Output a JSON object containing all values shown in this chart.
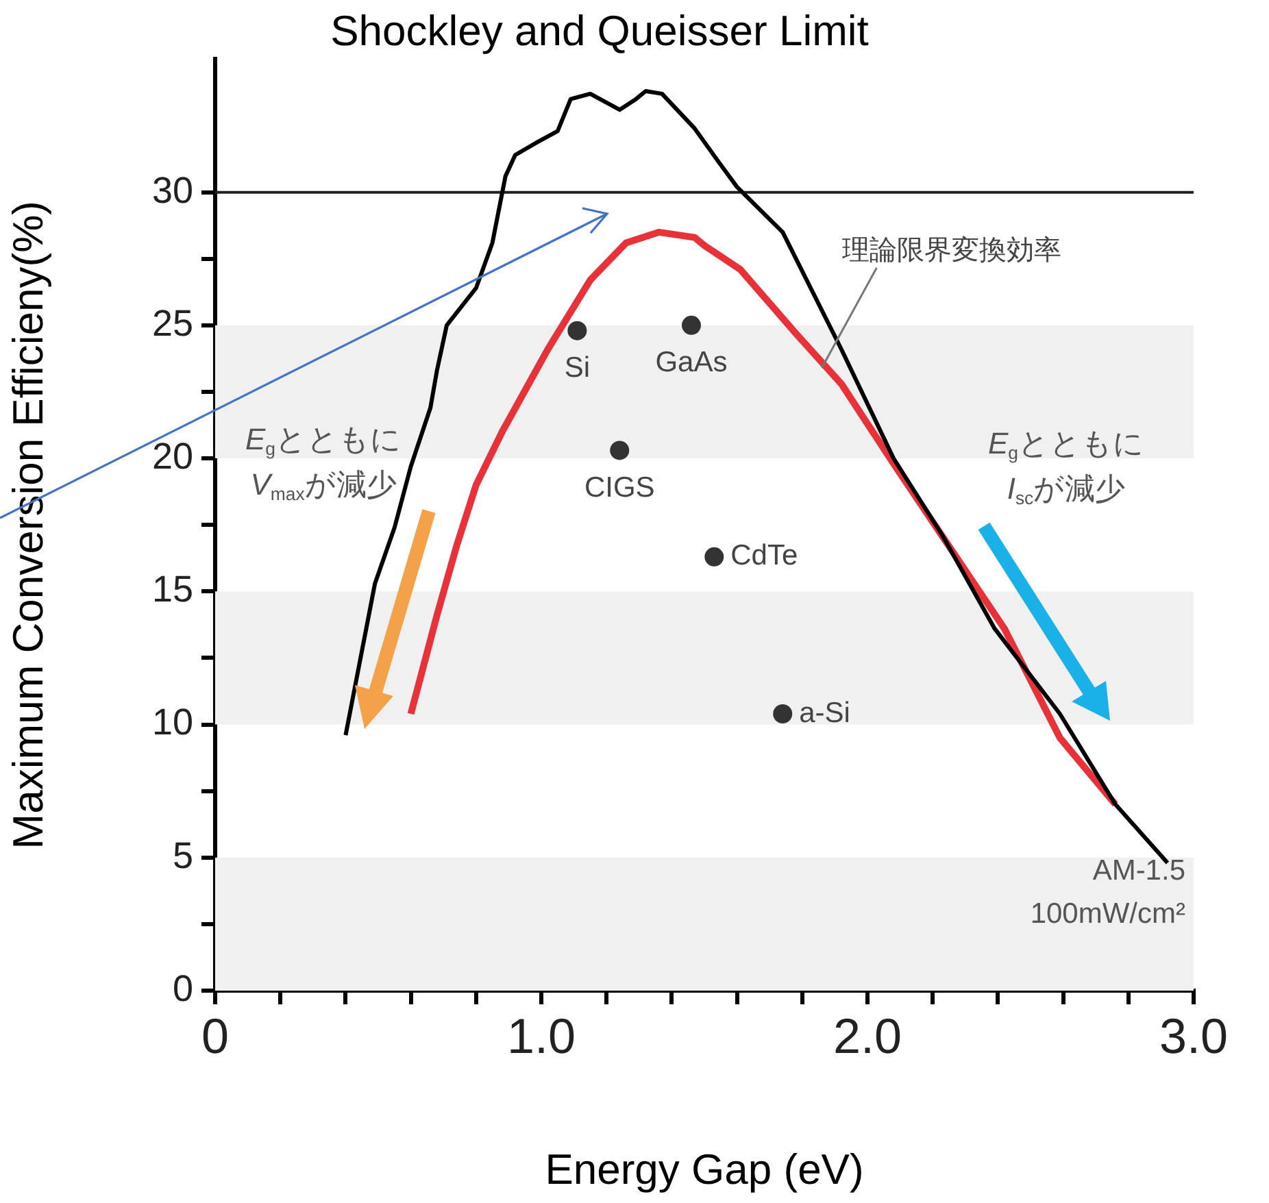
{
  "chart_data": {
    "type": "line",
    "title": "Shockley and Queisser Limit",
    "xlabel": "Energy Gap (eV)",
    "ylabel": "Maximum Conversion Efficieny(%)",
    "xlim": [
      0,
      3
    ],
    "xticks": [
      {
        "value": 0,
        "label": "0"
      },
      {
        "value": 0.2,
        "label": null
      },
      {
        "value": 0.4,
        "label": null
      },
      {
        "value": 0.6,
        "label": null
      },
      {
        "value": 0.8,
        "label": null
      },
      {
        "value": 1,
        "label": "1.0"
      },
      {
        "value": 1.2,
        "label": null
      },
      {
        "value": 1.4,
        "label": null
      },
      {
        "value": 1.6,
        "label": null
      },
      {
        "value": 1.8,
        "label": null
      },
      {
        "value": 2,
        "label": "2.0"
      },
      {
        "value": 2.2,
        "label": null
      },
      {
        "value": 2.4,
        "label": null
      },
      {
        "value": 2.6,
        "label": null
      },
      {
        "value": 2.8,
        "label": null
      },
      {
        "value": 3,
        "label": "3.0"
      }
    ],
    "ylim": [
      0,
      35
    ],
    "yticks": [
      0,
      {
        "value": 2.5,
        "label": null
      },
      5,
      {
        "value": 7.5,
        "label": null
      },
      10,
      {
        "value": 12.5,
        "label": null
      },
      15,
      {
        "value": 17.5,
        "label": null
      },
      20,
      {
        "value": 22.5,
        "label": null
      },
      25,
      {
        "value": 27.5,
        "label": null
      },
      30
    ],
    "grid": false,
    "legend": false,
    "series": [
      {
        "color": "#000000",
        "marker": "none",
        "x": [
          0.4,
          0.49,
          0.55,
          0.6,
          0.66,
          0.68,
          0.71,
          0.8,
          0.85,
          0.89,
          0.92,
          0.99,
          1.05,
          1.09,
          1.15,
          1.24,
          1.29,
          1.32,
          1.37,
          1.47,
          1.54,
          1.6,
          1.74,
          1.92,
          2.08,
          2.23,
          2.39,
          2.59,
          2.76,
          2.92
        ],
        "values": [
          9.6,
          15.3,
          17.4,
          19.7,
          21.9,
          23.3,
          25.0,
          26.4,
          28.1,
          30.6,
          31.4,
          31.9,
          32.3,
          33.5,
          33.7,
          33.1,
          33.5,
          33.8,
          33.7,
          32.4,
          31.2,
          30.2,
          28.5,
          24.1,
          20.0,
          17.1,
          13.6,
          10.4,
          7.0,
          4.8
        ]
      },
      {
        "color": "#e8323a",
        "marker": "none",
        "x": [
          0.6,
          0.68,
          0.74,
          0.8,
          0.88,
          1.02,
          1.15,
          1.26,
          1.36,
          1.47,
          1.5,
          1.61,
          1.78,
          1.92,
          2.08,
          2.25,
          2.42,
          2.59,
          2.76
        ],
        "values": [
          10.4,
          14.1,
          16.7,
          19.0,
          21.0,
          24.1,
          26.7,
          28.1,
          28.5,
          28.3,
          28.0,
          27.1,
          24.7,
          22.8,
          19.8,
          16.7,
          13.6,
          9.5,
          7.0
        ]
      },
      {
        "type": "scatter",
        "color": "#333333",
        "marker": "circle",
        "x": [
          1.11,
          1.46,
          1.24,
          1.53,
          1.74
        ],
        "values": [
          24.8,
          25.0,
          20.3,
          16.3,
          10.4
        ]
      }
    ],
    "bands": [
      {
        "axis": "y",
        "from": 0,
        "to": 5,
        "color": "#f0f0f0"
      },
      {
        "axis": "y",
        "from": 10,
        "to": 15,
        "color": "#f0f0f0"
      },
      {
        "axis": "y",
        "from": 20,
        "to": 25,
        "color": "#f0f0f0"
      }
    ],
    "ref_lines": [
      {
        "axis": "y",
        "value": 30,
        "color": "#222222"
      }
    ],
    "annotations": [
      "E$_{g}$とともに\nV$_{max}$が減少",
      "E$_{g}$とともに\nI$_{sc}$が減少",
      "AM-1.5\n100mW/cm²",
      {
        "text": "理論限界変換効率",
        "x": 1.86,
        "y": 23.4
      },
      {
        "text": "Si",
        "x": 1.11,
        "y": 24.8
      },
      {
        "text": "GaAs",
        "x": 1.46,
        "y": 25.0
      },
      {
        "text": "CIGS",
        "x": 1.24,
        "y": 20.3
      },
      {
        "text": "CdTe",
        "x": 1.53,
        "y": 16.3
      },
      {
        "text": "a-Si",
        "x": 1.74,
        "y": 10.4
      }
    ]
  }
}
